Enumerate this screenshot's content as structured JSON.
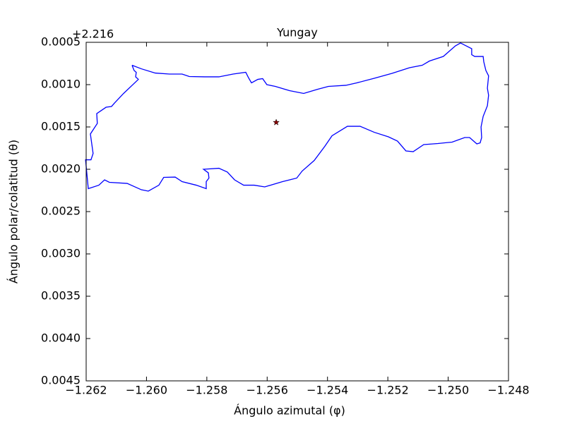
{
  "chart_data": {
    "type": "line",
    "title": "Yungay",
    "xlabel": "Ángulo azimutal (φ)",
    "ylabel": "Ángulo polar/colatitud (θ)",
    "y_offset_label": "+2.216",
    "xlim": [
      -1.262,
      -1.248
    ],
    "xticks": [
      {
        "value": -1.262,
        "label": "−1.262"
      },
      {
        "value": -1.26,
        "label": "−1.260"
      },
      {
        "value": -1.258,
        "label": "−1.258"
      },
      {
        "value": -1.256,
        "label": "−1.256"
      },
      {
        "value": -1.254,
        "label": "−1.254"
      },
      {
        "value": -1.252,
        "label": "−1.252"
      },
      {
        "value": -1.25,
        "label": "−1.250"
      },
      {
        "value": -1.248,
        "label": "−1.248"
      }
    ],
    "ylim": [
      0.0005,
      0.0045
    ],
    "y_inverted": true,
    "yticks": [
      0.0005,
      {
        "value": 0.001,
        "label": "0.0010"
      },
      0.0015,
      {
        "value": 0.002,
        "label": "0.0020"
      },
      0.0025,
      {
        "value": 0.003,
        "label": "0.0030"
      },
      0.0035,
      {
        "value": 0.004,
        "label": "0.0040"
      },
      0.0045
    ],
    "series": [
      {
        "color": "#0000ff",
        "x": [
          -1.26048,
          -1.26041,
          -1.26034,
          -1.26036,
          -1.26027,
          -1.26076,
          -1.26106,
          -1.26116,
          -1.26134,
          -1.26165,
          -1.26163,
          -1.26186,
          -1.26177,
          -1.26184,
          -1.26202,
          -1.26193,
          -1.26158,
          -1.26139,
          -1.26123,
          -1.26064,
          -1.26017,
          -1.25994,
          -1.25959,
          -1.25943,
          -1.25905,
          -1.25882,
          -1.25835,
          -1.25802,
          -1.25802,
          -1.25793,
          -1.25795,
          -1.25811,
          -1.2576,
          -1.25732,
          -1.25708,
          -1.25678,
          -1.25643,
          -1.25608,
          -1.25549,
          -1.25502,
          -1.25484,
          -1.25444,
          -1.25409,
          -1.25385,
          -1.25334,
          -1.25292,
          -1.25245,
          -1.25198,
          -1.25168,
          -1.2514,
          -1.25116,
          -1.25081,
          -1.25034,
          -1.24987,
          -1.24945,
          -1.24929,
          -1.24905,
          -1.24894,
          -1.24889,
          -1.24891,
          -1.24884,
          -1.2487,
          -1.24866,
          -1.2487,
          -1.24866,
          -1.24875,
          -1.24882,
          -1.24884,
          -1.24912,
          -1.24922,
          -1.24922,
          -1.24959,
          -1.24976,
          -1.25016,
          -1.25062,
          -1.25086,
          -1.25128,
          -1.25186,
          -1.25245,
          -1.25303,
          -1.25339,
          -1.25397,
          -1.25432,
          -1.25479,
          -1.25526,
          -1.25573,
          -1.25601,
          -1.25615,
          -1.25631,
          -1.25652,
          -1.25662,
          -1.25671,
          -1.25713,
          -1.2576,
          -1.25807,
          -1.25858,
          -1.25882,
          -1.25924,
          -1.25971,
          -1.26017,
          -1.26048
        ],
        "values": [
          0.000771,
          0.000833,
          0.000854,
          0.000908,
          0.000938,
          0.001104,
          0.001217,
          0.001258,
          0.001267,
          0.001342,
          0.001458,
          0.001583,
          0.001813,
          0.001888,
          0.001888,
          0.002229,
          0.002188,
          0.002125,
          0.002154,
          0.002167,
          0.002242,
          0.002258,
          0.002188,
          0.002096,
          0.002092,
          0.002146,
          0.002188,
          0.002229,
          0.002146,
          0.002104,
          0.002042,
          0.002,
          0.001988,
          0.002033,
          0.002125,
          0.002188,
          0.002188,
          0.002208,
          0.002146,
          0.002104,
          0.002021,
          0.001896,
          0.001729,
          0.001604,
          0.001492,
          0.001492,
          0.001563,
          0.001617,
          0.001667,
          0.001783,
          0.001792,
          0.001708,
          0.001696,
          0.001679,
          0.001625,
          0.001625,
          0.0017,
          0.001688,
          0.001625,
          0.0015,
          0.001375,
          0.00125,
          0.001125,
          0.001042,
          0.000896,
          0.000833,
          0.000729,
          0.000667,
          0.000667,
          0.000646,
          0.000575,
          0.000508,
          0.000542,
          0.000667,
          0.000721,
          0.000771,
          0.0008,
          0.000867,
          0.000925,
          0.000979,
          0.001008,
          0.001021,
          0.001054,
          0.001104,
          0.001071,
          0.001021,
          0.001,
          0.000929,
          0.000938,
          0.000979,
          0.000917,
          0.000854,
          0.000875,
          0.000908,
          0.000908,
          0.000904,
          0.000875,
          0.000875,
          0.000863,
          0.000813,
          0.000771
        ]
      },
      {
        "type": "scatter",
        "marker": "star",
        "color": "#8b0000",
        "x": [
          -1.2557
        ],
        "values": [
          0.001446
        ]
      }
    ]
  }
}
